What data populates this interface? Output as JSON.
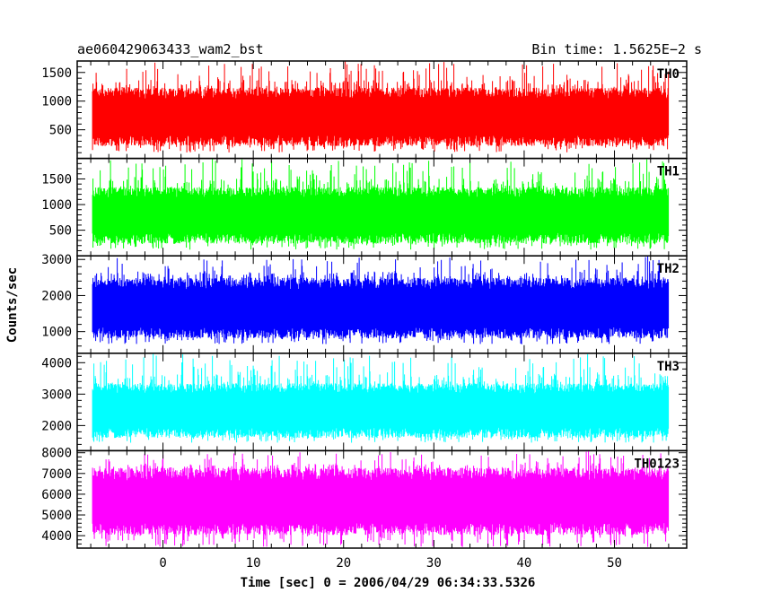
{
  "chart_data": {
    "type": "line",
    "title_left": "ae060429063433_wam2_bst",
    "title_right": "Bin time: 1.5625E−2 s",
    "xlabel": "Time [sec] 0 = 2006/04/29 06:34:33.5326",
    "ylabel": "Counts/sec",
    "xlim": [
      -9.5,
      58
    ],
    "data_range": [
      -7.8,
      56
    ],
    "bin_time": 0.015625,
    "grid": false,
    "xticks": [
      0,
      10,
      20,
      30,
      40,
      50
    ],
    "panels": [
      {
        "name": "TH0",
        "color": "#ff0000",
        "ylim": [
          0,
          1700
        ],
        "yticks": [
          500,
          1000,
          1500
        ],
        "band": [
          300,
          1150
        ],
        "spike_max": 1700,
        "spike_min": 100
      },
      {
        "name": "TH1",
        "color": "#00ff00",
        "ylim": [
          0,
          1900
        ],
        "yticks": [
          500,
          1000,
          1500
        ],
        "band": [
          330,
          1250
        ],
        "spike_max": 1900,
        "spike_min": 120
      },
      {
        "name": "TH2",
        "color": "#0000ff",
        "ylim": [
          400,
          3100
        ],
        "yticks": [
          1000,
          2000,
          3000
        ],
        "band": [
          950,
          2350
        ],
        "spike_max": 3100,
        "spike_min": 650
      },
      {
        "name": "TH3",
        "color": "#00ffff",
        "ylim": [
          1200,
          4300
        ],
        "yticks": [
          2000,
          3000,
          4000
        ],
        "band": [
          1750,
          3200
        ],
        "spike_max": 4300,
        "spike_min": 1450
      },
      {
        "name": "TH0123",
        "color": "#ff00ff",
        "ylim": [
          3400,
          8100
        ],
        "yticks": [
          4000,
          5000,
          6000,
          7000,
          8000
        ],
        "band": [
          4300,
          7000
        ],
        "spike_max": 8100,
        "spike_min": 3450
      }
    ]
  }
}
